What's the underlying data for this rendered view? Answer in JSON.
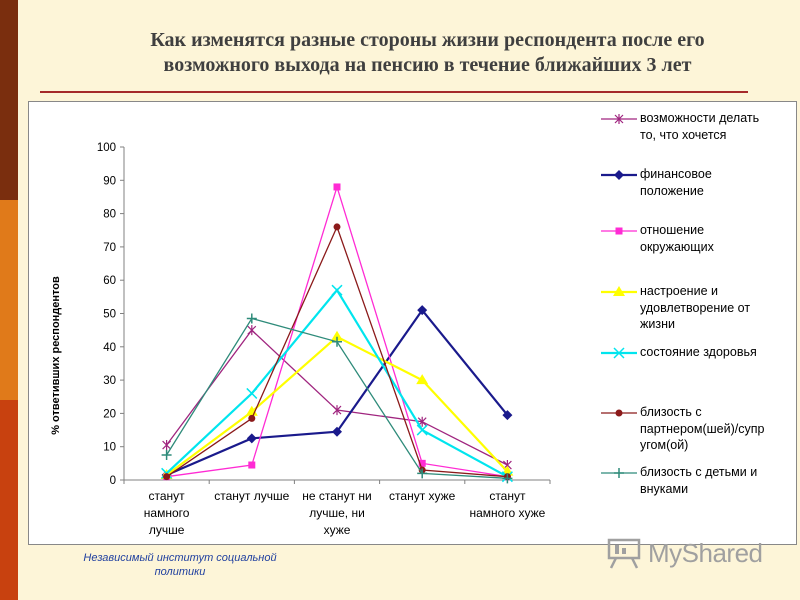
{
  "slide": {
    "title_line1": "Как изменятся разные стороны жизни респондента после его",
    "title_line2": "возможного выхода на пенсию в течение ближайших 3 лет",
    "footer_line1": "Независимый институт социальной",
    "footer_line2": "политики",
    "logo_text": "MyShared"
  },
  "chart_data": {
    "type": "line",
    "title": "",
    "xlabel": "",
    "ylabel": "% ответивших респондентов",
    "ylim": [
      0,
      100
    ],
    "yticks": [
      0,
      10,
      20,
      30,
      40,
      50,
      60,
      70,
      80,
      90,
      100
    ],
    "grid": false,
    "legend_position": "right",
    "categories": [
      [
        "станут",
        "намного",
        "лучше"
      ],
      [
        "станут лучше"
      ],
      [
        "не станут ни",
        "лучше, ни",
        "хуже"
      ],
      [
        "станут хуже"
      ],
      [
        "станут",
        "намного хуже"
      ]
    ],
    "series": [
      {
        "name": "возможности делать то, что хочется",
        "legend_lines": [
          "возможности делать",
          "то, что хочется"
        ],
        "color": "#a0257f",
        "marker": "star",
        "values": [
          10.5,
          45,
          21,
          17.5,
          4.5
        ]
      },
      {
        "name": "финансовое положение",
        "legend_lines": [
          "финансовое",
          "положение"
        ],
        "color": "#1a1a8c",
        "marker": "diamond",
        "values": [
          1.5,
          12.5,
          14.5,
          51,
          19.5
        ]
      },
      {
        "name": "отношение окружающих",
        "legend_lines": [
          "отношение",
          "окружающих"
        ],
        "color": "#ff2bd4",
        "marker": "square",
        "values": [
          1,
          4.5,
          88,
          5,
          1
        ]
      },
      {
        "name": "настроение и удовлетворение от жизни",
        "legend_lines": [
          "настроение и",
          "удовлетворение от",
          "жизни"
        ],
        "color": "#ffff00",
        "marker": "triangle",
        "values": [
          1.5,
          20.5,
          43,
          30,
          2.5
        ]
      },
      {
        "name": "состояние здоровья",
        "legend_lines": [
          "состояние здоровья"
        ],
        "color": "#00e5ee",
        "marker": "x",
        "values": [
          2,
          26,
          57,
          15,
          1
        ]
      },
      {
        "name": "близость с партнером(шей)/супругом(ой)",
        "legend_lines": [
          "близость с",
          "партнером(шей)/супр",
          "угом(ой)"
        ],
        "color": "#8b1a1a",
        "marker": "circle",
        "values": [
          1,
          18.5,
          76,
          3,
          1
        ]
      },
      {
        "name": "близость с детьми и внуками",
        "legend_lines": [
          "близость с детьми и",
          "внуками"
        ],
        "color": "#2e8b7a",
        "marker": "plus",
        "values": [
          7.5,
          48.5,
          41.5,
          2,
          0.5
        ]
      }
    ]
  },
  "colors": {
    "background": "#fdf5d8",
    "stripe_top": "#7a2e0e",
    "stripe_mid": "#e07a1a",
    "stripe_bottom": "#c8410f",
    "title_rule": "#a52a2a",
    "footer_text": "#1f3f9f"
  }
}
